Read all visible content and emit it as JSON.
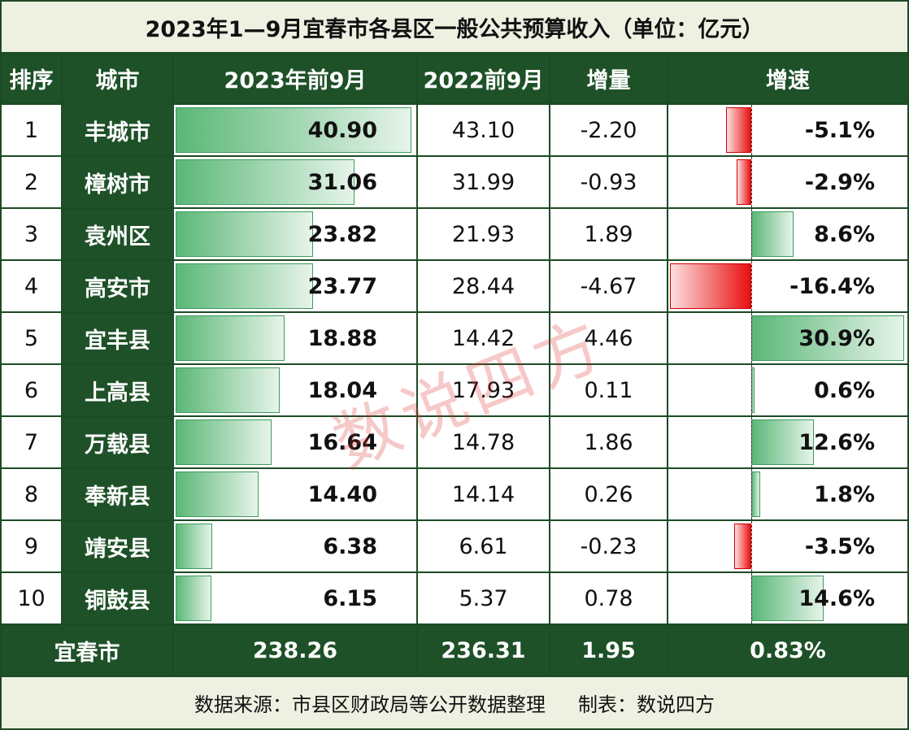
{
  "title": "2023年1—9月宜春市各县区一般公共预算收入（单位：亿元）",
  "header": [
    "排序",
    "城市",
    "2023年前9月",
    "2022前9月",
    "增量",
    "增速"
  ],
  "rows": [
    [
      "1",
      "丰城市",
      "40.90",
      "43.10",
      "-2.20",
      "-5.1%"
    ],
    [
      "2",
      "樟树市",
      "31.06",
      "31.99",
      "-0.93",
      "-2.9%"
    ],
    [
      "3",
      "袁州区",
      "23.82",
      "21.93",
      "1.89",
      "8.6%"
    ],
    [
      "4",
      "高安市",
      "23.77",
      "28.44",
      "-4.67",
      "-16.4%"
    ],
    [
      "5",
      "宜丰县",
      "18.88",
      "14.42",
      "4.46",
      "30.9%"
    ],
    [
      "6",
      "上高县",
      "18.04",
      "17.93",
      "0.11",
      "0.6%"
    ],
    [
      "7",
      "万载县",
      "16.64",
      "14.78",
      "1.86",
      "12.6%"
    ],
    [
      "8",
      "奉新县",
      "14.40",
      "14.14",
      "0.26",
      "1.8%"
    ],
    [
      "9",
      "靖安县",
      "6.38",
      "6.61",
      "-0.23",
      "-3.5%"
    ],
    [
      "10",
      "铜鼓县",
      "6.15",
      "5.37",
      "0.78",
      "14.6%"
    ]
  ],
  "total": [
    "宜春市",
    "238.26",
    "236.31",
    "1.95",
    "0.83%"
  ],
  "source": "数据来源：市县区财政局等公开数据整理",
  "credit": "制表：数说四方",
  "watermark": "数说四方"
}
